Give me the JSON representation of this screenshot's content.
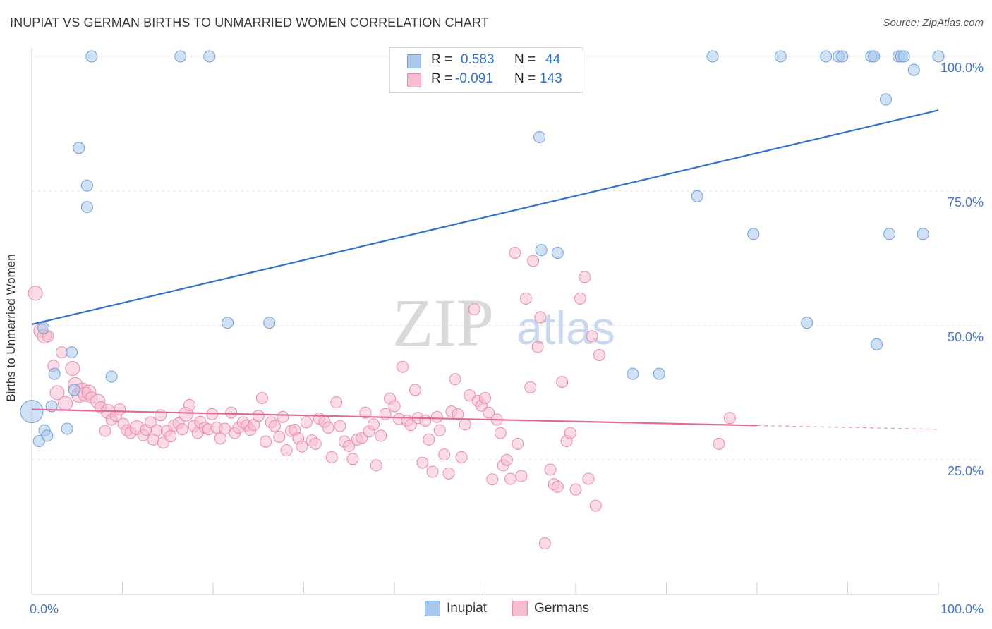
{
  "title": "INUPIAT VS GERMAN BIRTHS TO UNMARRIED WOMEN CORRELATION CHART",
  "source": "Source: ZipAtlas.com",
  "watermark": {
    "zip": "ZIP",
    "atlas": "atlas"
  },
  "colors": {
    "inupiat_fill": "#aac8ee",
    "inupiat_stroke": "#6f9fd8",
    "inupiat_line": "#2f72d0",
    "germans_fill": "#f7bdd0",
    "germans_stroke": "#e88aa8",
    "germans_line": "#e0689a",
    "axis_text": "#4a78c8",
    "grid": "#e4e4e4"
  },
  "stats_box": {
    "rows": [
      {
        "r_label": "R =",
        "r_value": "0.583",
        "n_label": "N =",
        "n_value": "44"
      },
      {
        "r_label": "R =",
        "r_value": "-0.091",
        "n_label": "N =",
        "n_value": "143"
      }
    ]
  },
  "legend": {
    "items": [
      "Inupiat",
      "Germans"
    ]
  },
  "chart_data": {
    "type": "scatter",
    "title": "INUPIAT VS GERMAN BIRTHS TO UNMARRIED WOMEN CORRELATION CHART",
    "xlabel": "",
    "ylabel": "Births to Unmarried Women",
    "xlim": [
      0,
      100
    ],
    "ylim": [
      0,
      100
    ],
    "x_tick_labels": [
      "0.0%",
      "100.0%"
    ],
    "y_tick_labels": [
      "25.0%",
      "50.0%",
      "75.0%",
      "100.0%"
    ],
    "y_ticks": [
      25,
      50,
      75,
      100
    ],
    "grid": true,
    "legend_position": "bottom",
    "series": [
      {
        "name": "Inupiat",
        "r": 0.583,
        "n": 44,
        "trend": {
          "x": [
            0,
            100
          ],
          "y": [
            50.2,
            90.0
          ]
        },
        "points": [
          [
            0,
            34,
            30
          ],
          [
            0.8,
            28.5,
            14
          ],
          [
            1.3,
            49.5,
            14
          ],
          [
            1.4,
            30.5,
            14
          ],
          [
            1.7,
            29.5,
            14
          ],
          [
            2.2,
            35,
            14
          ],
          [
            2.5,
            41,
            14
          ],
          [
            3.9,
            30.8,
            14
          ],
          [
            4.4,
            45,
            14
          ],
          [
            4.7,
            38,
            14
          ],
          [
            5.2,
            83,
            14
          ],
          [
            6.1,
            76,
            14
          ],
          [
            6.1,
            72,
            14
          ],
          [
            6.6,
            100,
            14
          ],
          [
            8.8,
            40.5,
            14
          ],
          [
            16.4,
            100,
            14
          ],
          [
            19.6,
            100,
            14
          ],
          [
            21.6,
            50.5,
            14
          ],
          [
            26.2,
            50.5,
            14
          ],
          [
            52.8,
            100,
            14
          ],
          [
            56.0,
            85,
            14
          ],
          [
            56.2,
            64,
            14
          ],
          [
            58.0,
            63.5,
            14
          ],
          [
            66.3,
            41,
            14
          ],
          [
            69.2,
            41,
            14
          ],
          [
            73.4,
            74,
            14
          ],
          [
            75.1,
            100,
            14
          ],
          [
            79.6,
            67,
            14
          ],
          [
            82.6,
            100,
            14
          ],
          [
            85.5,
            50.5,
            14
          ],
          [
            87.6,
            100,
            14
          ],
          [
            89.0,
            100,
            14
          ],
          [
            89.4,
            100,
            14
          ],
          [
            92.6,
            100,
            14
          ],
          [
            92.9,
            100,
            14
          ],
          [
            93.2,
            46.5,
            14
          ],
          [
            94.2,
            92,
            14
          ],
          [
            94.6,
            67,
            14
          ],
          [
            95.6,
            100,
            14
          ],
          [
            95.9,
            100,
            14
          ],
          [
            96.2,
            100,
            14
          ],
          [
            97.3,
            97.5,
            14
          ],
          [
            98.3,
            67,
            14
          ],
          [
            100,
            100,
            14
          ]
        ]
      },
      {
        "name": "Germans",
        "r": -0.091,
        "n": 143,
        "trend": {
          "x": [
            0,
            80
          ],
          "y": [
            34.4,
            31.4
          ]
        },
        "trend_dashed": {
          "x": [
            80,
            100
          ],
          "y": [
            31.4,
            30.7
          ]
        },
        "points": [
          [
            0.4,
            56,
            18
          ],
          [
            1.0,
            49,
            18
          ],
          [
            1.4,
            48,
            18
          ],
          [
            1.8,
            48,
            14
          ],
          [
            2.4,
            42.5,
            14
          ],
          [
            2.8,
            37.5,
            18
          ],
          [
            3.3,
            45,
            14
          ],
          [
            3.7,
            35.5,
            18
          ],
          [
            4.5,
            42,
            18
          ],
          [
            4.8,
            39,
            18
          ],
          [
            5.2,
            37,
            18
          ],
          [
            5.6,
            38,
            18
          ],
          [
            5.9,
            37.2,
            18
          ],
          [
            6.3,
            37.6,
            18
          ],
          [
            6.6,
            36.6,
            14
          ],
          [
            7.3,
            35.9,
            18
          ],
          [
            7.6,
            34.8,
            14
          ],
          [
            8.1,
            30.4,
            14
          ],
          [
            8.4,
            34.0,
            18
          ],
          [
            8.8,
            32.5,
            14
          ],
          [
            9.3,
            33.2,
            14
          ],
          [
            9.7,
            34.4,
            14
          ],
          [
            10.1,
            31.7,
            14
          ],
          [
            10.5,
            30.5,
            14
          ],
          [
            10.9,
            30.0,
            14
          ],
          [
            11.6,
            31.0,
            18
          ],
          [
            12.3,
            29.6,
            14
          ],
          [
            12.6,
            30.6,
            14
          ],
          [
            13.1,
            32.0,
            14
          ],
          [
            13.4,
            28.8,
            14
          ],
          [
            13.8,
            30.5,
            14
          ],
          [
            14.2,
            33.3,
            14
          ],
          [
            14.5,
            28.2,
            14
          ],
          [
            14.9,
            30.4,
            14
          ],
          [
            15.3,
            29.4,
            14
          ],
          [
            15.7,
            31.4,
            14
          ],
          [
            16.2,
            31.8,
            14
          ],
          [
            16.6,
            30.7,
            14
          ],
          [
            17.0,
            33.5,
            18
          ],
          [
            17.4,
            35.2,
            14
          ],
          [
            17.9,
            31.3,
            14
          ],
          [
            18.3,
            30.0,
            14
          ],
          [
            18.6,
            32.1,
            14
          ],
          [
            19.1,
            31.0,
            14
          ],
          [
            19.5,
            30.7,
            14
          ],
          [
            19.9,
            33.5,
            14
          ],
          [
            20.4,
            31.0,
            14
          ],
          [
            20.8,
            29.0,
            14
          ],
          [
            21.3,
            30.8,
            14
          ],
          [
            22.0,
            33.8,
            14
          ],
          [
            22.4,
            30.0,
            14
          ],
          [
            22.8,
            31.0,
            14
          ],
          [
            23.3,
            32.0,
            14
          ],
          [
            23.7,
            31.4,
            14
          ],
          [
            24.1,
            30.6,
            14
          ],
          [
            24.5,
            31.5,
            14
          ],
          [
            25.0,
            33.2,
            14
          ],
          [
            25.4,
            36.5,
            14
          ],
          [
            25.8,
            28.4,
            14
          ],
          [
            26.4,
            32.0,
            14
          ],
          [
            26.8,
            31.3,
            14
          ],
          [
            27.3,
            29.3,
            14
          ],
          [
            27.7,
            33.0,
            14
          ],
          [
            28.1,
            26.8,
            14
          ],
          [
            28.6,
            30.4,
            14
          ],
          [
            29.0,
            30.6,
            14
          ],
          [
            29.4,
            29.0,
            14
          ],
          [
            29.8,
            27.5,
            14
          ],
          [
            30.3,
            32.0,
            14
          ],
          [
            30.9,
            28.6,
            14
          ],
          [
            31.3,
            28.0,
            14
          ],
          [
            31.7,
            32.7,
            14
          ],
          [
            32.3,
            32.1,
            14
          ],
          [
            32.7,
            31.0,
            14
          ],
          [
            33.1,
            25.5,
            14
          ],
          [
            33.6,
            35.7,
            14
          ],
          [
            34.0,
            31.3,
            14
          ],
          [
            34.5,
            28.4,
            14
          ],
          [
            35.0,
            27.6,
            14
          ],
          [
            35.4,
            25.2,
            14
          ],
          [
            35.9,
            28.8,
            14
          ],
          [
            36.4,
            29.1,
            14
          ],
          [
            36.8,
            33.8,
            14
          ],
          [
            37.2,
            30.3,
            14
          ],
          [
            37.7,
            31.6,
            14
          ],
          [
            38.0,
            24.0,
            14
          ],
          [
            38.5,
            29.5,
            14
          ],
          [
            39.0,
            33.5,
            14
          ],
          [
            39.5,
            36.4,
            14
          ],
          [
            40.0,
            35.0,
            14
          ],
          [
            40.5,
            32.6,
            14
          ],
          [
            40.9,
            42.3,
            14
          ],
          [
            41.4,
            32.3,
            14
          ],
          [
            41.8,
            31.5,
            14
          ],
          [
            42.3,
            38.0,
            14
          ],
          [
            42.6,
            32.8,
            14
          ],
          [
            43.1,
            24.5,
            14
          ],
          [
            43.4,
            32.3,
            14
          ],
          [
            43.8,
            28.8,
            14
          ],
          [
            44.2,
            22.8,
            14
          ],
          [
            44.7,
            33.0,
            14
          ],
          [
            45.0,
            30.5,
            14
          ],
          [
            45.5,
            26.0,
            14
          ],
          [
            46.0,
            22.5,
            14
          ],
          [
            46.3,
            34.0,
            14
          ],
          [
            46.7,
            40.0,
            14
          ],
          [
            47.0,
            33.5,
            14
          ],
          [
            47.4,
            25.5,
            14
          ],
          [
            47.8,
            31.6,
            14
          ],
          [
            48.3,
            37.0,
            14
          ],
          [
            48.8,
            53.0,
            14
          ],
          [
            49.2,
            36.0,
            14
          ],
          [
            49.6,
            35.1,
            14
          ],
          [
            50.0,
            36.5,
            14
          ],
          [
            50.4,
            33.8,
            14
          ],
          [
            50.8,
            21.4,
            14
          ],
          [
            51.3,
            32.5,
            14
          ],
          [
            51.7,
            30.0,
            14
          ],
          [
            52.0,
            24.0,
            14
          ],
          [
            52.4,
            25.0,
            14
          ],
          [
            52.8,
            21.5,
            14
          ],
          [
            53.3,
            63.5,
            14
          ],
          [
            53.6,
            28.0,
            14
          ],
          [
            54.0,
            22.0,
            14
          ],
          [
            54.5,
            55.0,
            14
          ],
          [
            55.0,
            38.5,
            14
          ],
          [
            55.3,
            62.0,
            14
          ],
          [
            55.8,
            46.0,
            14
          ],
          [
            56.1,
            51.5,
            14
          ],
          [
            56.6,
            9.5,
            14
          ],
          [
            57.2,
            23.2,
            14
          ],
          [
            57.6,
            20.5,
            14
          ],
          [
            58.0,
            20.0,
            14
          ],
          [
            58.5,
            39.5,
            14
          ],
          [
            59.0,
            28.5,
            14
          ],
          [
            59.4,
            30.0,
            14
          ],
          [
            60.0,
            19.5,
            14
          ],
          [
            60.5,
            55.0,
            14
          ],
          [
            61.0,
            59.0,
            14
          ],
          [
            61.4,
            21.5,
            14
          ],
          [
            61.8,
            48.0,
            14
          ],
          [
            62.2,
            16.5,
            14
          ],
          [
            62.6,
            44.5,
            14
          ],
          [
            75.8,
            28.0,
            14
          ],
          [
            77.0,
            32.8,
            14
          ]
        ]
      }
    ]
  }
}
